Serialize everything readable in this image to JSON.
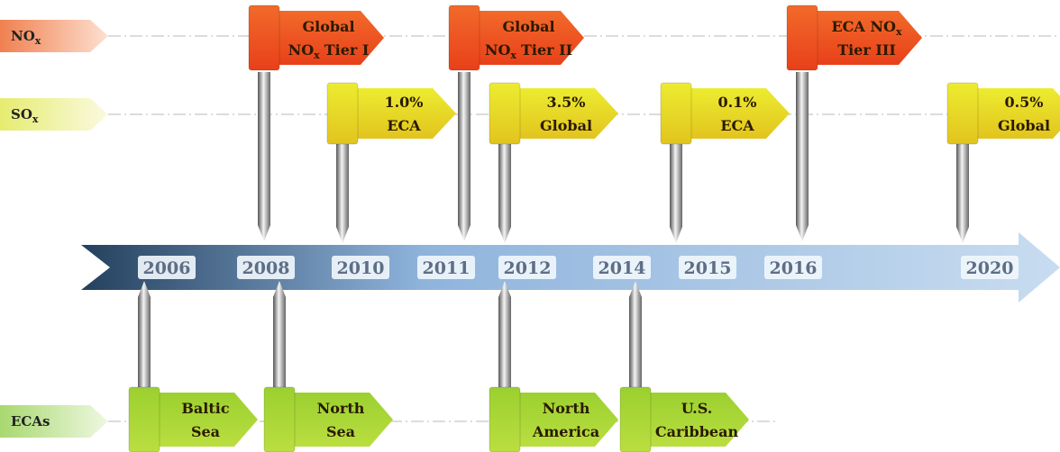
{
  "rows": [
    {
      "label": "NO",
      "sub": "x"
    },
    {
      "label": "SO",
      "sub": "x"
    },
    {
      "label": "ECAs"
    }
  ],
  "years": [
    "2006",
    "2008",
    "2010",
    "2011",
    "2012",
    "2014",
    "2015",
    "2016",
    "2020"
  ],
  "nox_flags": [
    {
      "lines": [
        "Global",
        {
          "pre": "NO",
          "sub": "x",
          "post": "Tier I"
        }
      ]
    },
    {
      "lines": [
        "Global",
        {
          "pre": "NO",
          "sub": "x",
          "post": "Tier II"
        }
      ]
    },
    {
      "lines": [
        {
          "pre": "ECA NO",
          "sub": "x",
          "post": ""
        },
        "Tier III"
      ]
    }
  ],
  "sox_flags": [
    {
      "lines": [
        "1.0%",
        "ECA"
      ]
    },
    {
      "lines": [
        "3.5%",
        "Global"
      ]
    },
    {
      "lines": [
        "0.1%",
        "ECA"
      ]
    },
    {
      "lines": [
        "0.5%",
        "Global"
      ]
    }
  ],
  "eca_flags": [
    {
      "lines": [
        "Baltic",
        "Sea"
      ]
    },
    {
      "lines": [
        "North",
        "Sea"
      ]
    },
    {
      "lines": [
        "North",
        "America"
      ]
    },
    {
      "lines": [
        "U.S.",
        "Caribbean"
      ]
    }
  ]
}
